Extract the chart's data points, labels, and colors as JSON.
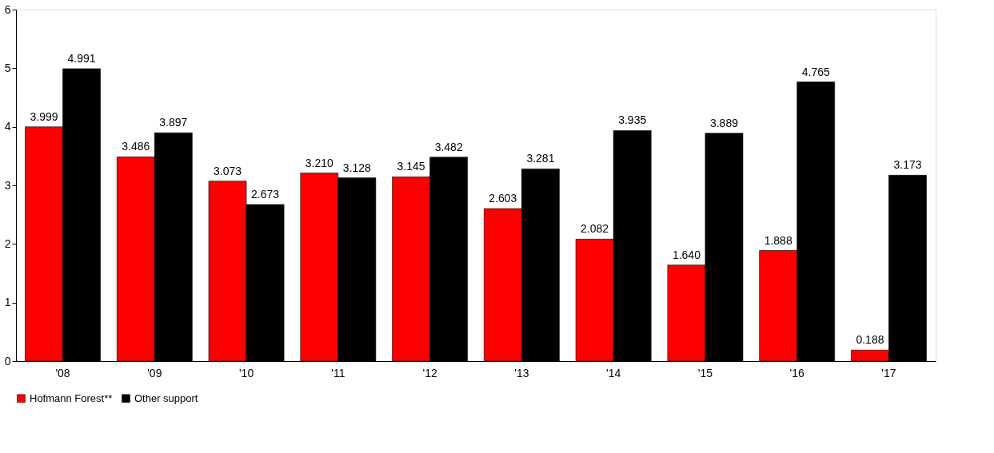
{
  "chart_data": {
    "type": "bar",
    "categories": [
      "'08",
      "'09",
      "'10",
      "'11",
      "'12",
      "'13",
      "'14",
      "'15",
      "'16",
      "'17"
    ],
    "series": [
      {
        "name": "Hofmann Forest**",
        "color": "#ff0000",
        "values": [
          3.999,
          3.486,
          3.073,
          3.21,
          3.145,
          2.603,
          2.082,
          1.64,
          1.888,
          0.188
        ],
        "value_labels": [
          "3.999",
          "3.486",
          "3.073",
          "3.210",
          "3.145",
          "2.603",
          "2.082",
          "1.640",
          "1.888",
          "0.188"
        ]
      },
      {
        "name": "Other support",
        "color": "#000000",
        "values": [
          4.991,
          3.897,
          2.673,
          3.128,
          3.482,
          3.281,
          3.935,
          3.889,
          4.765,
          3.173
        ],
        "value_labels": [
          "4.991",
          "3.897",
          "2.673",
          "3.128",
          "3.482",
          "3.281",
          "3.935",
          "3.889",
          "4.765",
          "3.173"
        ]
      }
    ],
    "ylim": [
      0,
      6
    ],
    "yticks": [
      0,
      1,
      2,
      3,
      4,
      5,
      6
    ],
    "grid": false,
    "legend": "bottom"
  }
}
